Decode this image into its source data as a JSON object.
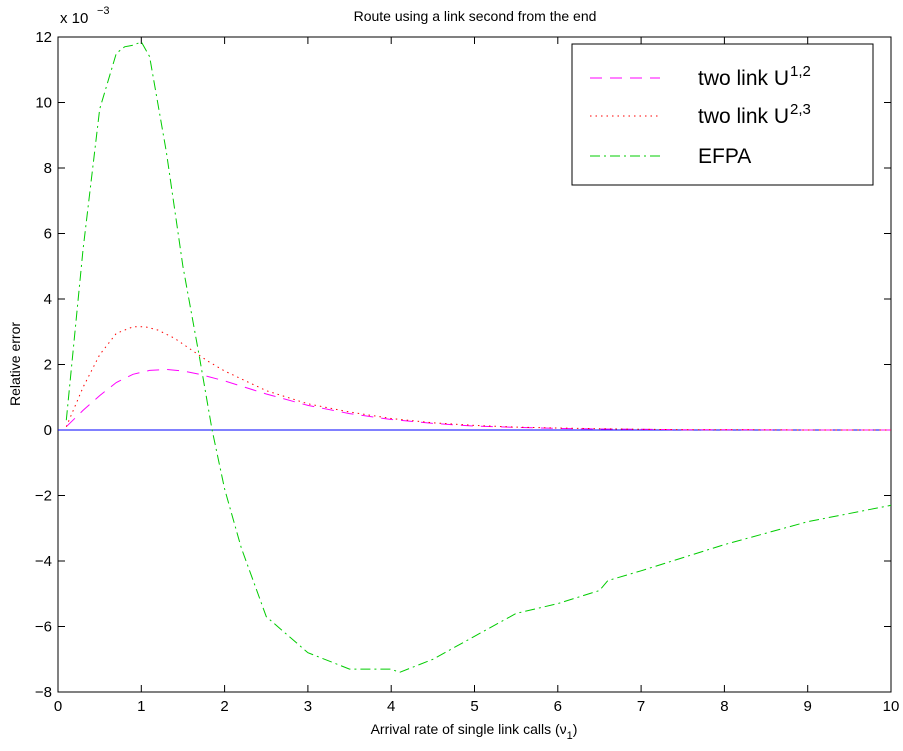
{
  "chart_data": {
    "type": "line",
    "title": "Route using a link second from the end",
    "xlabel": "Arrival rate of single link calls (",
    "xlabel_symbol": "ν",
    "xlabel_subscript": "1",
    "xlabel_suffix": ")",
    "ylabel": "Relative error",
    "y_exponent_label": "x 10",
    "y_exponent_power": "−3",
    "xlim": [
      0,
      10
    ],
    "ylim": [
      -8,
      12
    ],
    "x_ticks": [
      0,
      1,
      2,
      3,
      4,
      5,
      6,
      7,
      8,
      9,
      10
    ],
    "y_ticks": [
      -8,
      -6,
      -4,
      -2,
      0,
      2,
      4,
      6,
      8,
      10,
      12
    ],
    "x_tick_labels": [
      "0",
      "1",
      "2",
      "3",
      "4",
      "5",
      "6",
      "7",
      "8",
      "9",
      "10"
    ],
    "y_tick_labels": [
      "−8",
      "−6",
      "−4",
      "−2",
      "0",
      "2",
      "4",
      "6",
      "8",
      "10",
      "12"
    ],
    "grid": false,
    "legend_position": "top-right",
    "series": [
      {
        "name": "two link U",
        "name_subscript": "1,2",
        "color": "#ff00ff",
        "dash": "dashed",
        "x": [
          0.1,
          0.3,
          0.5,
          0.7,
          0.9,
          1.1,
          1.3,
          1.5,
          1.7,
          2.0,
          2.5,
          3.0,
          3.5,
          4.0,
          4.5,
          5.0,
          5.5,
          6.0,
          6.5,
          7.0,
          7.5,
          8.0,
          9.0,
          10.0
        ],
        "values": [
          0.1,
          0.6,
          1.05,
          1.45,
          1.7,
          1.82,
          1.85,
          1.8,
          1.7,
          1.5,
          1.1,
          0.75,
          0.5,
          0.32,
          0.2,
          0.12,
          0.08,
          0.05,
          0.03,
          0.02,
          0.01,
          0.01,
          0.0,
          0.0
        ]
      },
      {
        "name": "two link U",
        "name_subscript": "2,3",
        "color": "#ff0000",
        "dash": "dotted",
        "x": [
          0.1,
          0.3,
          0.5,
          0.7,
          0.9,
          1.05,
          1.2,
          1.4,
          1.6,
          1.8,
          2.0,
          2.5,
          3.0,
          3.5,
          4.0,
          4.5,
          5.0,
          5.5,
          6.0,
          6.5,
          7.0,
          7.5,
          8.0,
          9.0,
          10.0
        ],
        "values": [
          0.1,
          1.3,
          2.3,
          2.95,
          3.15,
          3.15,
          3.05,
          2.8,
          2.45,
          2.1,
          1.8,
          1.2,
          0.8,
          0.55,
          0.35,
          0.22,
          0.14,
          0.09,
          0.06,
          0.04,
          0.02,
          0.01,
          0.01,
          0.0,
          0.0
        ]
      },
      {
        "name": "EFPA",
        "name_subscript": "",
        "color": "#00cc00",
        "dash": "dashdot",
        "x": [
          0.1,
          0.3,
          0.5,
          0.7,
          0.8,
          0.9,
          1.0,
          1.1,
          1.3,
          1.5,
          1.7,
          1.85,
          2.0,
          2.2,
          2.5,
          3.0,
          3.5,
          4.0,
          4.1,
          4.5,
          5.0,
          5.5,
          6.0,
          6.5,
          6.6,
          7.0,
          8.0,
          9.0,
          10.0
        ],
        "values": [
          0.3,
          5.5,
          9.8,
          11.5,
          11.7,
          11.75,
          11.85,
          11.4,
          8.5,
          5.0,
          2.2,
          0.0,
          -1.8,
          -3.6,
          -5.7,
          -6.8,
          -7.3,
          -7.3,
          -7.4,
          -7.0,
          -6.3,
          -5.6,
          -5.3,
          -4.9,
          -4.6,
          -4.3,
          -3.5,
          -2.8,
          -2.3
        ]
      },
      {
        "name": "",
        "color": "#0000ff",
        "dash": "solid",
        "x": [
          0,
          10
        ],
        "values": [
          0,
          0
        ]
      }
    ]
  }
}
